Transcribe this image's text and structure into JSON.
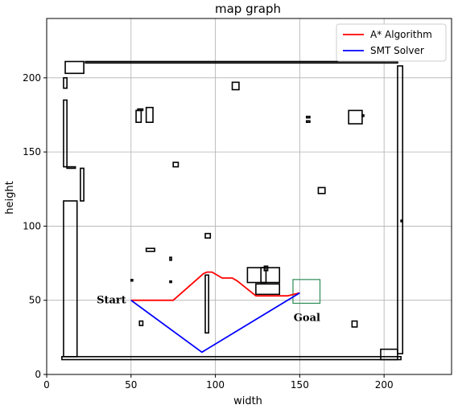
{
  "chart_data": {
    "type": "line",
    "title": "map graph",
    "xlabel": "width",
    "ylabel": "height",
    "xlim": [
      0,
      240
    ],
    "ylim": [
      0,
      240
    ],
    "xticks": [
      0,
      50,
      100,
      150,
      200
    ],
    "yticks": [
      0,
      50,
      100,
      150,
      200
    ],
    "grid": true,
    "legend_position": "top-right",
    "series": [
      {
        "name": "A* Algorithm",
        "color": "#ff0000",
        "x": [
          50,
          75,
          93,
          95,
          98,
          104,
          110,
          113,
          124,
          143,
          150
        ],
        "y": [
          50,
          50,
          68,
          69,
          69,
          65,
          65,
          63,
          53,
          53,
          55
        ]
      },
      {
        "name": "SMT Solver",
        "color": "#0000ff",
        "x": [
          50,
          92,
          150
        ],
        "y": [
          50,
          15,
          55
        ]
      }
    ],
    "goal_box": {
      "x": [
        146,
        162
      ],
      "y": [
        48,
        64
      ],
      "color": "#2e8b57"
    },
    "annotations": [
      {
        "text": "Start",
        "x": 50,
        "y": 50
      },
      {
        "text": "Goal",
        "x": 150,
        "y": 48
      }
    ],
    "obstacles": [
      {
        "x0": 9,
        "y0": 12,
        "x1": 210,
        "y1": 10
      },
      {
        "x0": 23,
        "y0": 210,
        "x1": 208,
        "y1": 211
      },
      {
        "x0": 10,
        "y0": 12,
        "x1": 18,
        "y1": 117
      },
      {
        "x0": 10,
        "y0": 140,
        "x1": 12,
        "y1": 185
      },
      {
        "x0": 10,
        "y0": 193,
        "x1": 12,
        "y1": 200
      },
      {
        "x0": 11,
        "y0": 203,
        "x1": 22,
        "y1": 211
      },
      {
        "x0": 20,
        "y0": 117,
        "x1": 22,
        "y1": 139
      },
      {
        "x0": 12,
        "y0": 139,
        "x1": 17,
        "y1": 140
      },
      {
        "x0": 208,
        "y0": 14,
        "x1": 211,
        "y1": 208
      },
      {
        "x0": 198,
        "y0": 10,
        "x1": 208,
        "y1": 17
      },
      {
        "x0": 110,
        "y0": 192,
        "x1": 114,
        "y1": 197
      },
      {
        "x0": 53,
        "y0": 170,
        "x1": 56,
        "y1": 178
      },
      {
        "x0": 54,
        "y0": 178,
        "x1": 57,
        "y1": 179
      },
      {
        "x0": 59,
        "y0": 170,
        "x1": 63,
        "y1": 180
      },
      {
        "x0": 75,
        "y0": 140,
        "x1": 78,
        "y1": 143
      },
      {
        "x0": 94,
        "y0": 92,
        "x1": 97,
        "y1": 95
      },
      {
        "x0": 59,
        "y0": 83,
        "x1": 64,
        "y1": 85
      },
      {
        "x0": 73,
        "y0": 77,
        "x1": 74,
        "y1": 79
      },
      {
        "x0": 94,
        "y0": 28,
        "x1": 96,
        "y1": 67
      },
      {
        "x0": 55,
        "y0": 33,
        "x1": 57,
        "y1": 36
      },
      {
        "x0": 119,
        "y0": 62,
        "x1": 130,
        "y1": 72
      },
      {
        "x0": 127,
        "y0": 62,
        "x1": 138,
        "y1": 72
      },
      {
        "x0": 124,
        "y0": 54,
        "x1": 138,
        "y1": 61
      },
      {
        "x0": 129,
        "y0": 70,
        "x1": 131,
        "y1": 73
      },
      {
        "x0": 154,
        "y0": 170,
        "x1": 156,
        "y1": 171
      },
      {
        "x0": 154,
        "y0": 173,
        "x1": 156,
        "y1": 174
      },
      {
        "x0": 161,
        "y0": 122,
        "x1": 165,
        "y1": 126
      },
      {
        "x0": 179,
        "y0": 169,
        "x1": 187,
        "y1": 178
      },
      {
        "x0": 187,
        "y0": 174,
        "x1": 188,
        "y1": 175
      },
      {
        "x0": 181,
        "y0": 32,
        "x1": 184,
        "y1": 36
      },
      {
        "x0": 50,
        "y0": 63,
        "x1": 51,
        "y1": 64
      },
      {
        "x0": 73,
        "y0": 62,
        "x1": 74,
        "y1": 63
      },
      {
        "x0": 210,
        "y0": 103,
        "x1": 211,
        "y1": 104
      }
    ]
  }
}
